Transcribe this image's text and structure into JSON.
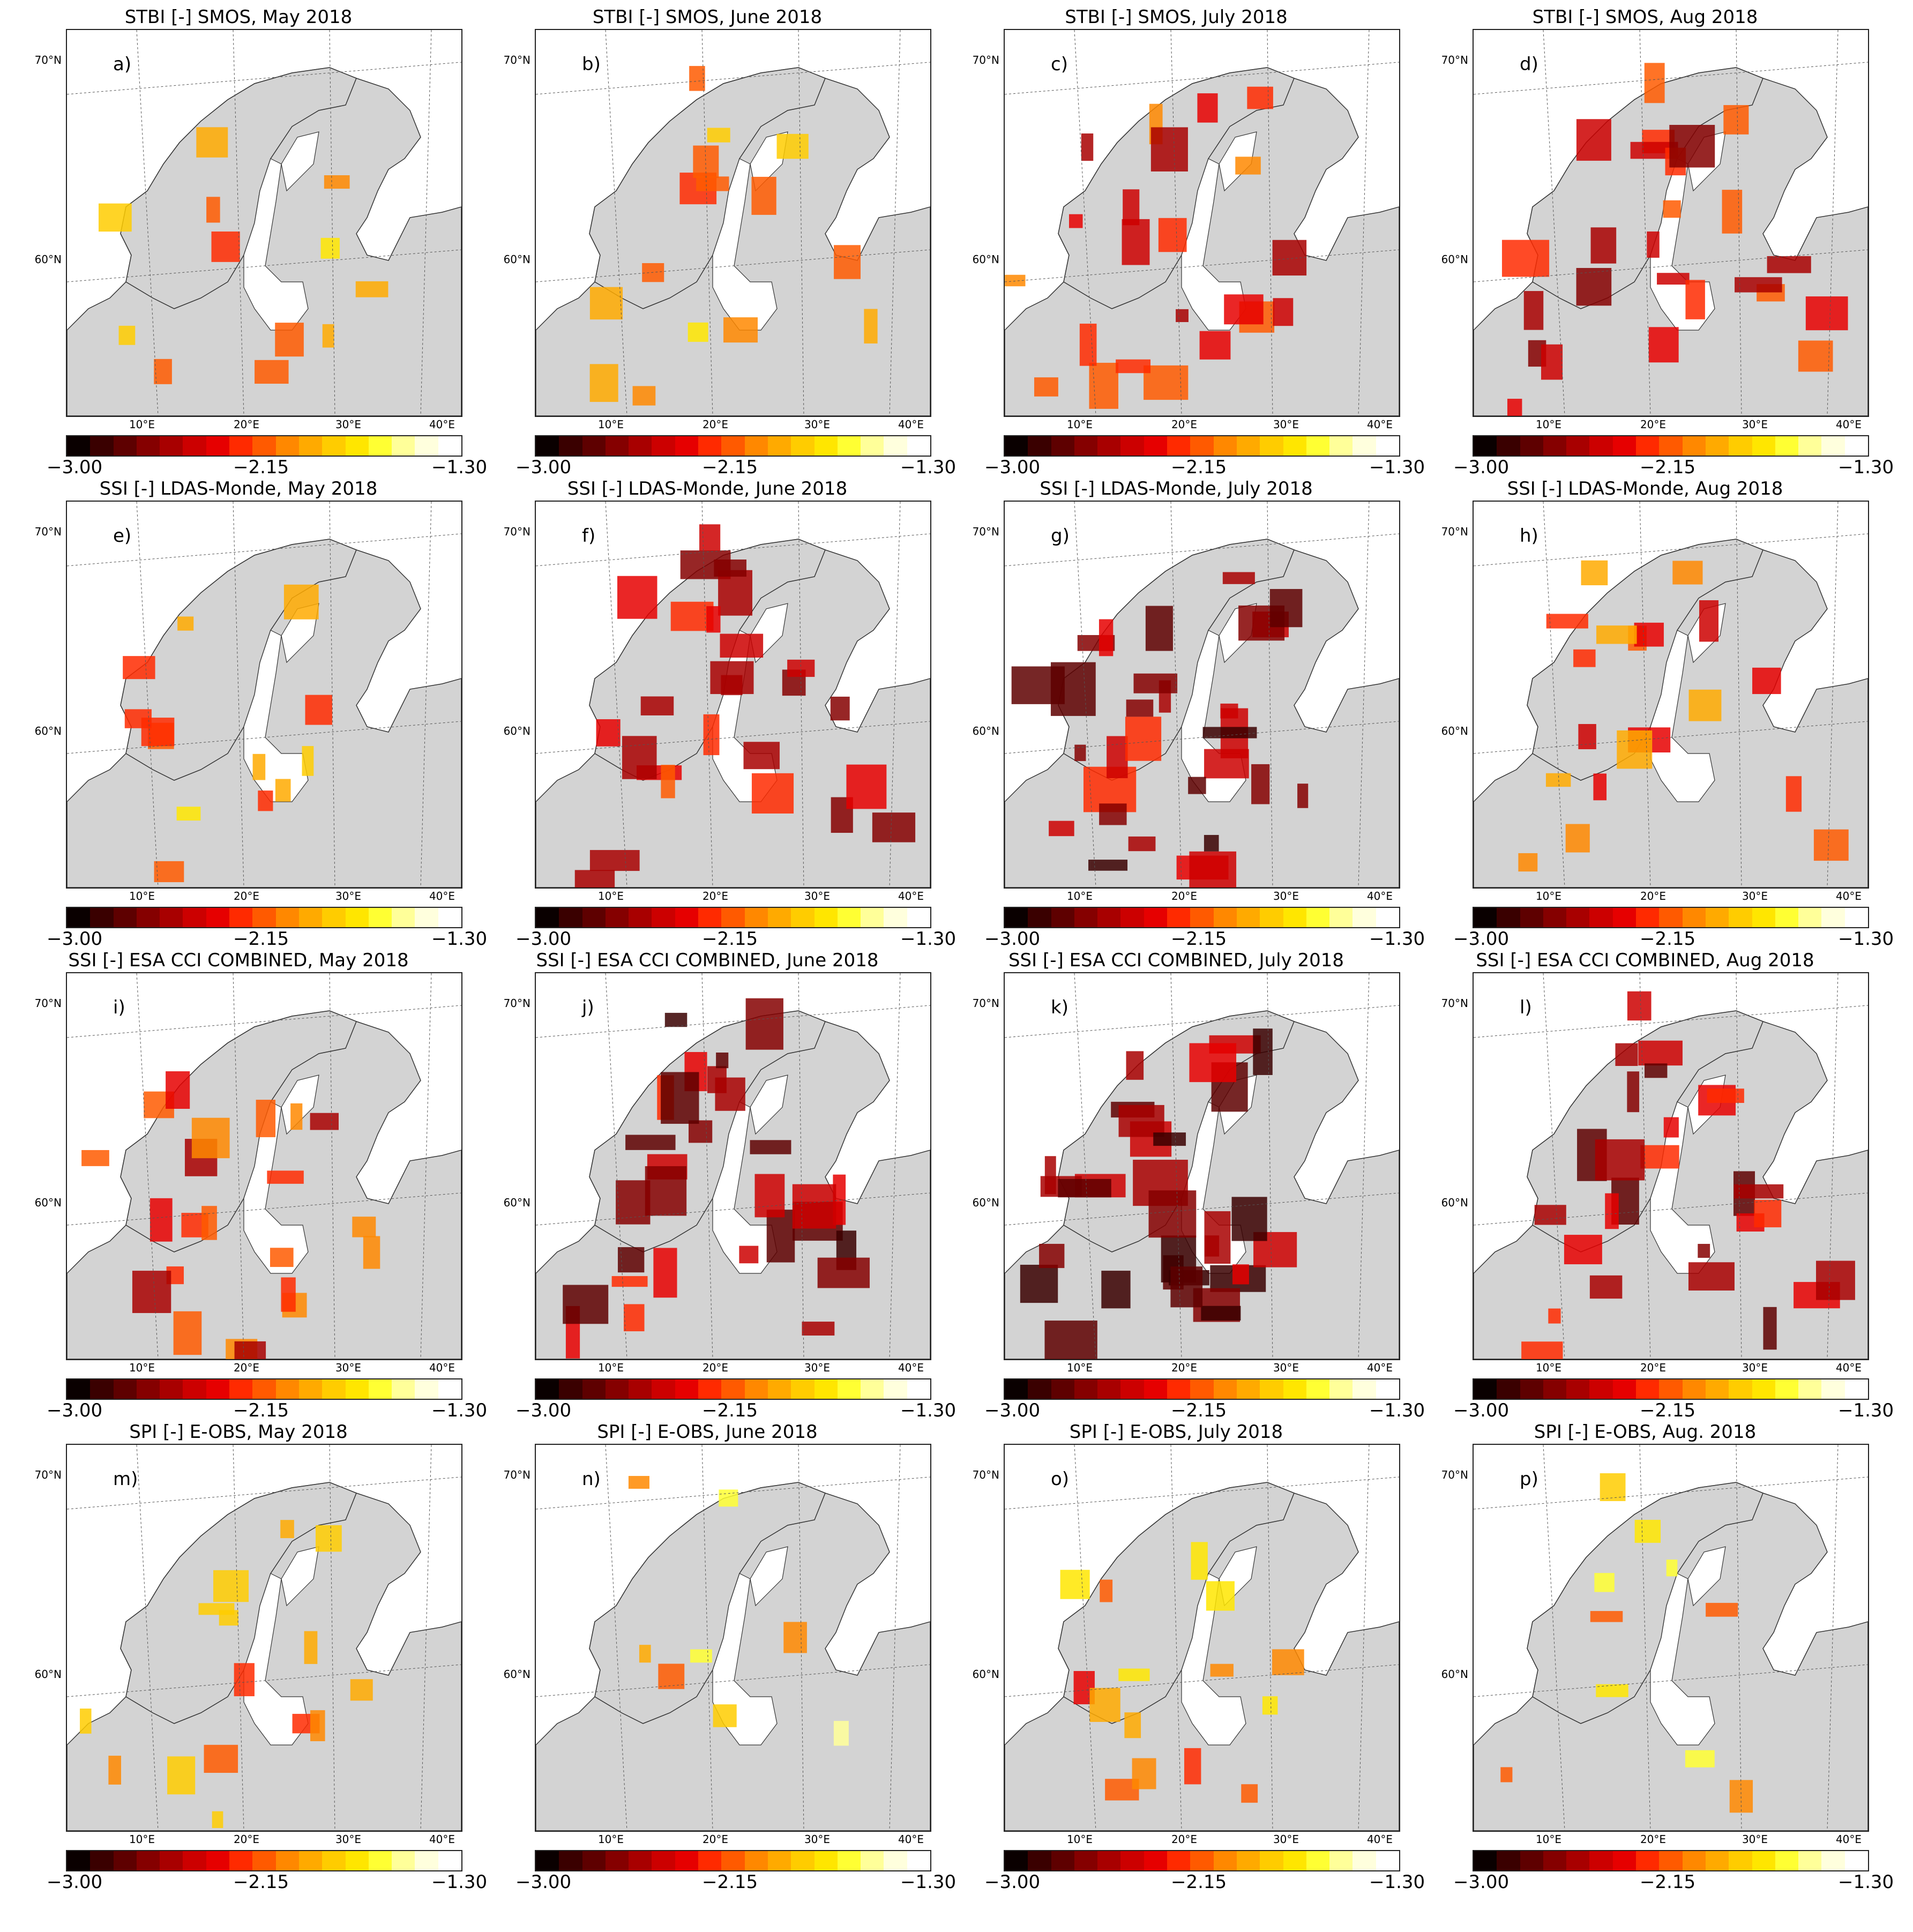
{
  "figure": {
    "colorbar": {
      "min_label": "−3.00",
      "mid_label": "−2.15",
      "max_label": "−1.30",
      "colors": [
        "#0a0000",
        "#3a0000",
        "#5e0000",
        "#850000",
        "#a80000",
        "#cc0000",
        "#e60000",
        "#ff2a00",
        "#ff5a00",
        "#ff8800",
        "#ffaa00",
        "#ffcc00",
        "#ffe600",
        "#ffff33",
        "#ffff99",
        "#ffffdd",
        "#ffffff"
      ]
    },
    "lat_labels": [
      "70°N",
      "60°N"
    ],
    "lon_labels": [
      "10°E",
      "20°E",
      "30°E",
      "40°E"
    ],
    "panels": [
      {
        "id": "a)",
        "title": "STBI [-] SMOS, May 2018",
        "intensity": 0.25
      },
      {
        "id": "b)",
        "title": "STBI [-] SMOS, June 2018",
        "intensity": 0.35
      },
      {
        "id": "c)",
        "title": "STBI [-] SMOS, July 2018",
        "intensity": 0.6
      },
      {
        "id": "d)",
        "title": "STBI [-] SMOS, Aug 2018",
        "intensity": 0.7
      },
      {
        "id": "e)",
        "title": "SSI [-] LDAS-Monde, May 2018",
        "intensity": 0.3
      },
      {
        "id": "f)",
        "title": "SSI [-] LDAS-Monde, June 2018",
        "intensity": 0.75
      },
      {
        "id": "g)",
        "title": "SSI [-] LDAS-Monde, July 2018",
        "intensity": 0.85
      },
      {
        "id": "h)",
        "title": "SSI [-] LDAS-Monde, Aug 2018",
        "intensity": 0.5
      },
      {
        "id": "i)",
        "title": "SSI [-] ESA CCI COMBINED, May 2018",
        "intensity": 0.6
      },
      {
        "id": "j)",
        "title": "SSI [-] ESA CCI COMBINED, June 2018",
        "intensity": 0.85
      },
      {
        "id": "k)",
        "title": "SSI [-] ESA CCI COMBINED, July 2018",
        "intensity": 0.9
      },
      {
        "id": "l)",
        "title": "SSI [-] ESA CCI COMBINED, Aug 2018",
        "intensity": 0.8
      },
      {
        "id": "m)",
        "title": "SPI [-] E-OBS, May 2018",
        "intensity": 0.35
      },
      {
        "id": "n)",
        "title": "SPI [-] E-OBS, June 2018",
        "intensity": 0.15
      },
      {
        "id": "o)",
        "title": "SPI [-] E-OBS, July 2018",
        "intensity": 0.35
      },
      {
        "id": "p)",
        "title": "SPI [-] E-OBS, Aug. 2018",
        "intensity": 0.2
      }
    ]
  }
}
